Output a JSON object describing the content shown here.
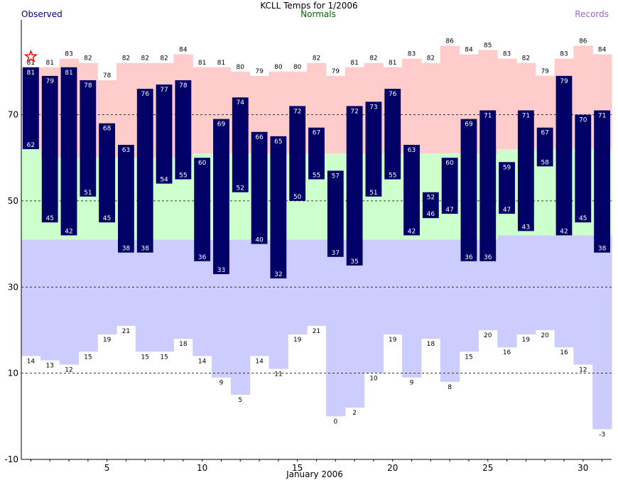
{
  "chart_data": {
    "type": "bar",
    "title": "KCLL Temps for 1/2006",
    "legend": {
      "observed": "Observed",
      "normals": "Normals",
      "records": "Records"
    },
    "xlabel": "January 2006",
    "ylabel": "",
    "x_ticks": [
      5,
      10,
      15,
      20,
      25,
      30
    ],
    "y_ticks": [
      -10,
      10,
      30,
      50,
      70
    ],
    "ylim": [
      -10,
      92
    ],
    "days": [
      1,
      2,
      3,
      4,
      5,
      6,
      7,
      8,
      9,
      10,
      11,
      12,
      13,
      14,
      15,
      16,
      17,
      18,
      19,
      20,
      21,
      22,
      23,
      24,
      25,
      26,
      27,
      28,
      29,
      30,
      31
    ],
    "observed_high": [
      81,
      79,
      81,
      78,
      68,
      63,
      76,
      77,
      78,
      60,
      69,
      74,
      66,
      65,
      72,
      67,
      57,
      72,
      73,
      76,
      63,
      52,
      60,
      69,
      71,
      59,
      71,
      67,
      79,
      70,
      71
    ],
    "observed_low": [
      62,
      45,
      42,
      51,
      45,
      38,
      38,
      54,
      55,
      36,
      33,
      52,
      40,
      32,
      50,
      55,
      37,
      35,
      51,
      55,
      42,
      46,
      47,
      36,
      36,
      47,
      43,
      58,
      42,
      45,
      38
    ],
    "record_high": [
      81,
      81,
      83,
      82,
      78,
      82,
      82,
      82,
      84,
      81,
      81,
      80,
      79,
      80,
      80,
      82,
      79,
      81,
      82,
      81,
      83,
      82,
      86,
      84,
      85,
      83,
      82,
      79,
      83,
      86,
      84
    ],
    "record_low": [
      14,
      13,
      12,
      15,
      19,
      21,
      15,
      15,
      18,
      14,
      9,
      5,
      14,
      11,
      19,
      21,
      0,
      2,
      10,
      19,
      9,
      18,
      8,
      15,
      20,
      16,
      19,
      20,
      16,
      12,
      -3
    ],
    "normal_high": [
      62,
      60,
      60,
      60,
      60,
      60,
      60,
      60,
      60,
      61,
      61,
      61,
      61,
      61,
      61,
      61,
      61,
      61,
      61,
      61,
      61,
      61,
      61,
      61,
      61,
      62,
      62,
      62,
      62,
      62,
      62
    ],
    "normal_low": [
      41,
      41,
      41,
      41,
      41,
      41,
      41,
      41,
      41,
      41,
      41,
      41,
      41,
      41,
      41,
      41,
      41,
      41,
      41,
      41,
      41,
      41,
      41,
      41,
      41,
      42,
      42,
      42,
      42,
      42,
      42
    ],
    "record_event_days": [
      1
    ],
    "colors": {
      "observed": "#000066",
      "normals_band": "#ccffcc",
      "record_high_band": "#ffcccc",
      "record_low_band": "#ccccff",
      "observed_legend": "#000080",
      "normals_legend": "#006600",
      "records_legend": "#9966cc",
      "star": "#ff0000",
      "grid": "#000000"
    }
  }
}
